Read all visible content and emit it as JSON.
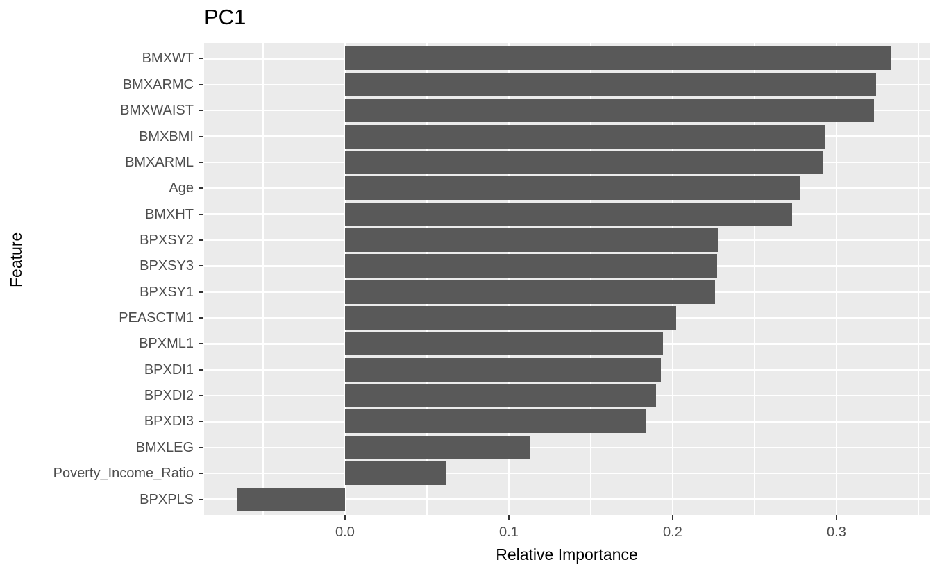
{
  "chart_data": {
    "type": "bar",
    "orientation": "horizontal",
    "title": "PC1",
    "xlabel": "Relative Importance",
    "ylabel": "Feature",
    "categories": [
      "BMXWT",
      "BMXARMC",
      "BMXWAIST",
      "BMXBMI",
      "BMXARML",
      "Age",
      "BMXHT",
      "BPXSY2",
      "BPXSY3",
      "BPXSY1",
      "PEASCTM1",
      "BPXML1",
      "BPXDI1",
      "BPXDI2",
      "BPXDI3",
      "BMXLEG",
      "Poverty_Income_Ratio",
      "BPXPLS"
    ],
    "values": [
      0.333,
      0.324,
      0.323,
      0.293,
      0.292,
      0.278,
      0.273,
      0.228,
      0.227,
      0.226,
      0.202,
      0.194,
      0.193,
      0.19,
      0.184,
      0.113,
      0.062,
      -0.066
    ],
    "x_ticks": [
      {
        "value": 0.0,
        "label": "0.0"
      },
      {
        "value": 0.1,
        "label": "0.1"
      },
      {
        "value": 0.2,
        "label": "0.2"
      },
      {
        "value": 0.3,
        "label": "0.3"
      }
    ],
    "x_minor_breaks": [
      -0.05,
      0.05,
      0.15,
      0.25,
      0.35
    ],
    "xlim": [
      -0.086,
      0.3568
    ],
    "grid": true,
    "legend_position": "none",
    "bar_width_fraction": 0.9,
    "colors": {
      "bar": "#595959",
      "panel_background": "#EBEBEB",
      "gridline": "#FFFFFF",
      "tick_mark": "#333333",
      "axis_text": "#4D4D4D",
      "title_text": "#000000",
      "figure_background": "#FFFFFF"
    }
  }
}
